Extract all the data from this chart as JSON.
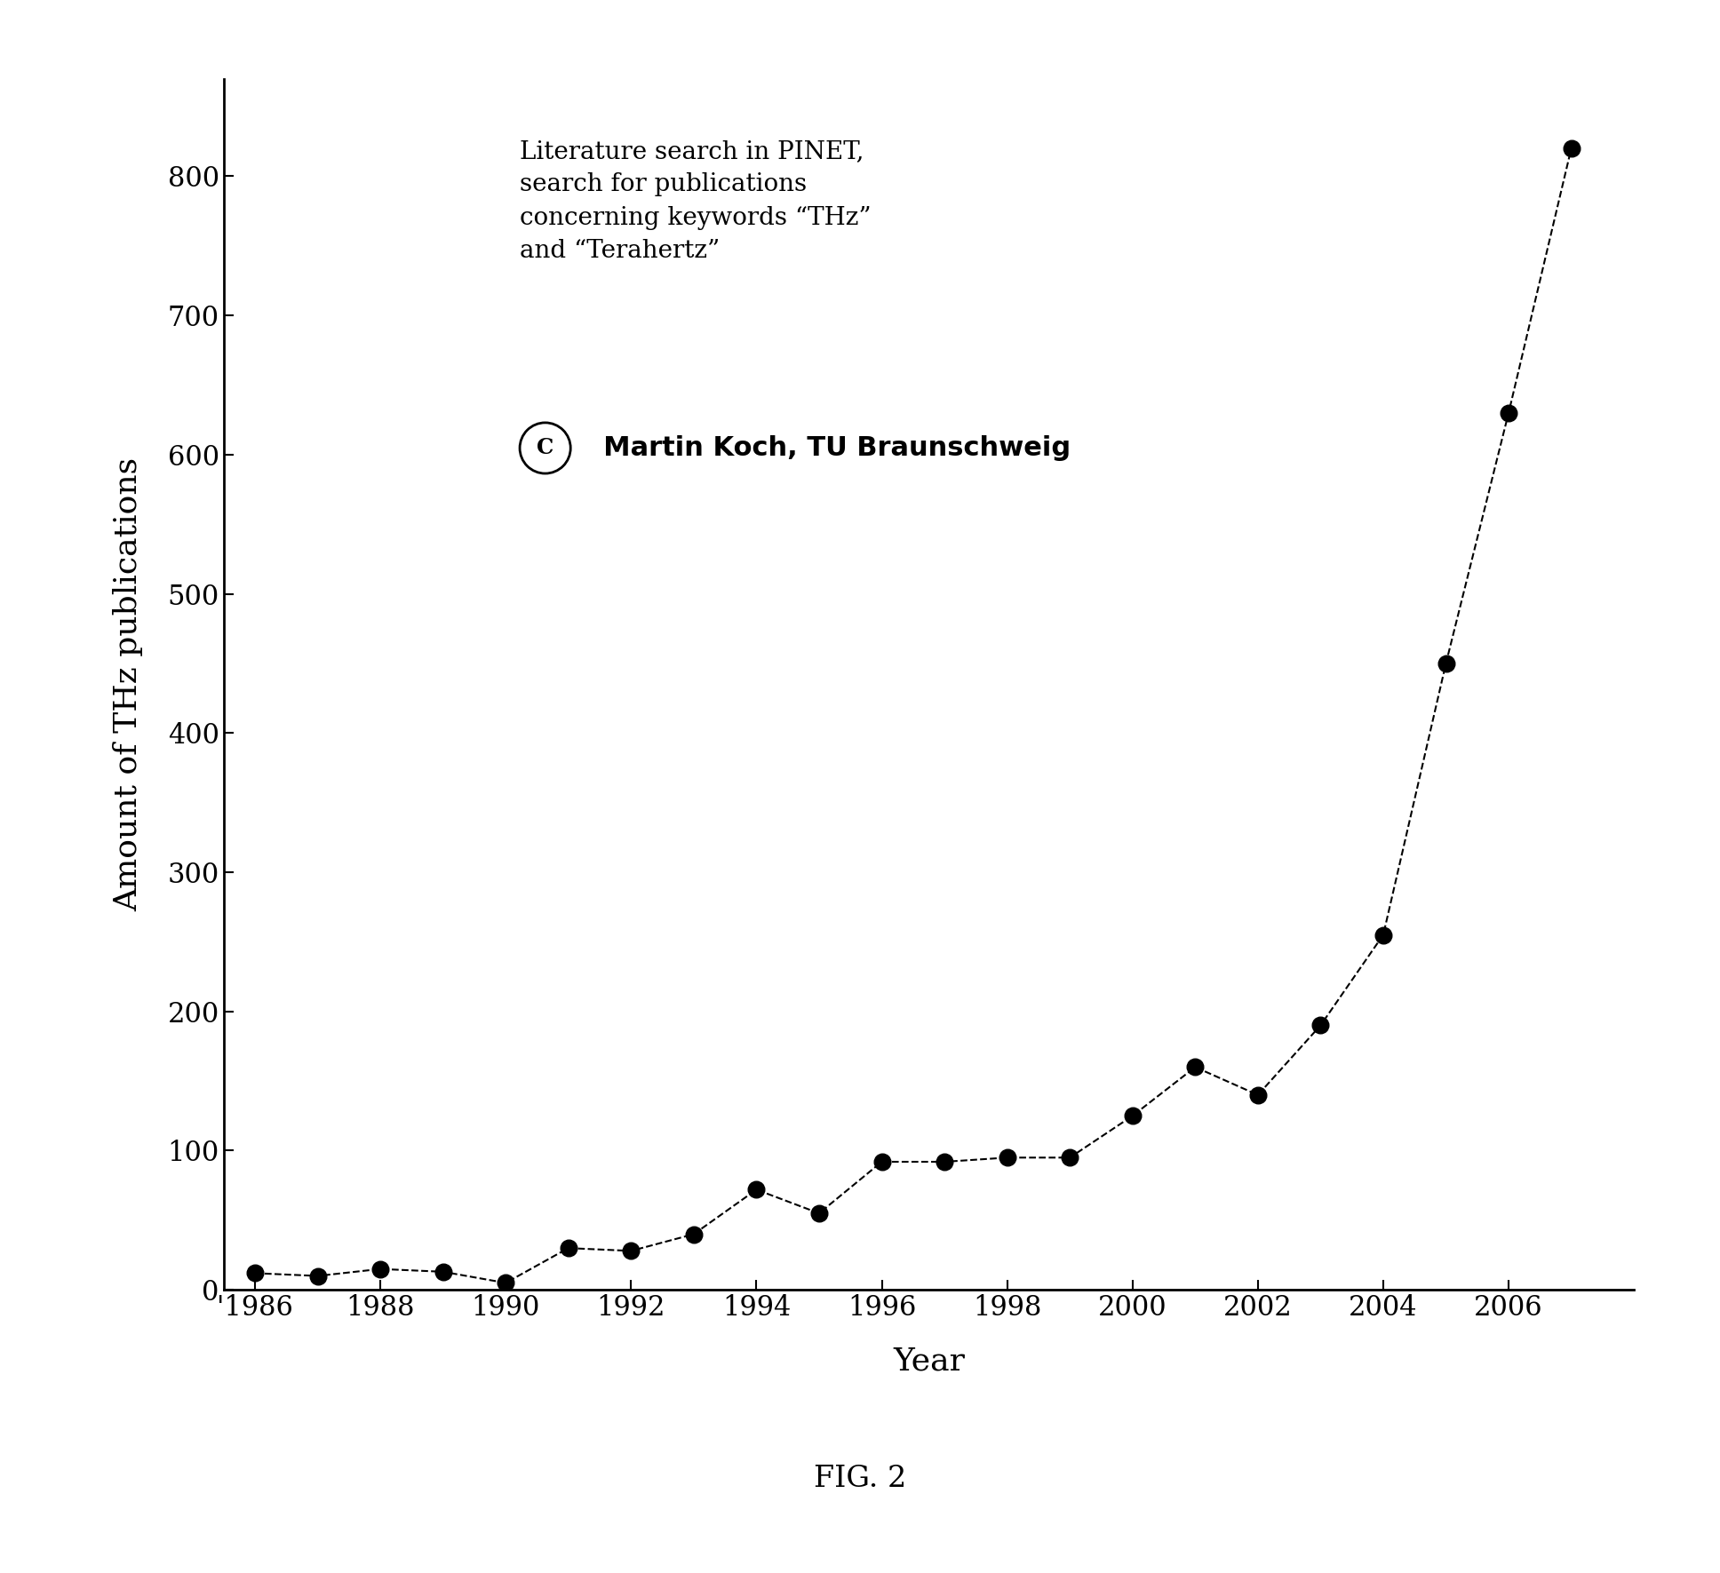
{
  "years": [
    1986,
    1987,
    1988,
    1989,
    1990,
    1991,
    1992,
    1993,
    1994,
    1995,
    1996,
    1997,
    1998,
    1999,
    2000,
    2001,
    2002,
    2003,
    2004,
    2005,
    2006,
    2007
  ],
  "values": [
    12,
    10,
    15,
    13,
    5,
    30,
    28,
    40,
    72,
    55,
    92,
    92,
    95,
    95,
    125,
    160,
    140,
    190,
    255,
    450,
    630,
    820
  ],
  "xlabel": "Year",
  "ylabel": "Amount of THz publications",
  "annotation_text": "Literature search in PINET,\nsearch for publications\nconcerning keywords “THz”\nand “Terahertz”",
  "copyright_text": "  Martin Koch, TU Braunschweig",
  "fig_label": "FIG. 2",
  "xlim": [
    1985.5,
    2008.0
  ],
  "ylim": [
    0,
    870
  ],
  "yticks": [
    0,
    100,
    200,
    300,
    400,
    500,
    600,
    700,
    800
  ],
  "xticks": [
    1986,
    1988,
    1990,
    1992,
    1994,
    1996,
    1998,
    2000,
    2002,
    2004,
    2006
  ],
  "xtick_labels": [
    "'1986",
    "1988",
    "1990",
    "1992",
    "1994",
    "1996",
    "1998",
    "2000",
    "2002",
    "2004",
    "2006"
  ],
  "line_color": "#000000",
  "marker_color": "#000000",
  "background_color": "#ffffff",
  "marker_size": 180,
  "line_width": 1.5,
  "annotation_fontsize": 20,
  "copyright_fontsize": 22,
  "axis_label_fontsize": 26,
  "tick_fontsize": 22,
  "fig_label_fontsize": 24
}
